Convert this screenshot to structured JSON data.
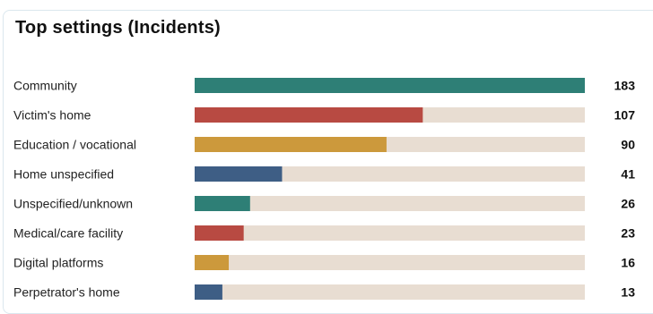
{
  "card": {
    "title": "Top settings (Incidents)"
  },
  "colors": {
    "track": "#e8ddd2",
    "teal": "#2e7f76",
    "red": "#b84a42",
    "gold": "#cc993c",
    "blue": "#3e5e85",
    "label": "#222222",
    "value": "#111111"
  },
  "chart_data": {
    "type": "bar",
    "orientation": "horizontal",
    "title": "Top settings (Incidents)",
    "categories": [
      "Community",
      "Victim's home",
      "Education / vocational",
      "Home unspecified",
      "Unspecified/unknown",
      "Medical/care facility",
      "Digital platforms",
      "Perpetrator's home"
    ],
    "values": [
      183,
      107,
      90,
      41,
      26,
      23,
      16,
      13
    ],
    "bar_colors": [
      "#2e7f76",
      "#b84a42",
      "#cc993c",
      "#3e5e85",
      "#2e7f76",
      "#b84a42",
      "#cc993c",
      "#3e5e85"
    ],
    "xlim": [
      0,
      183
    ],
    "grid": false,
    "legend": "none"
  }
}
